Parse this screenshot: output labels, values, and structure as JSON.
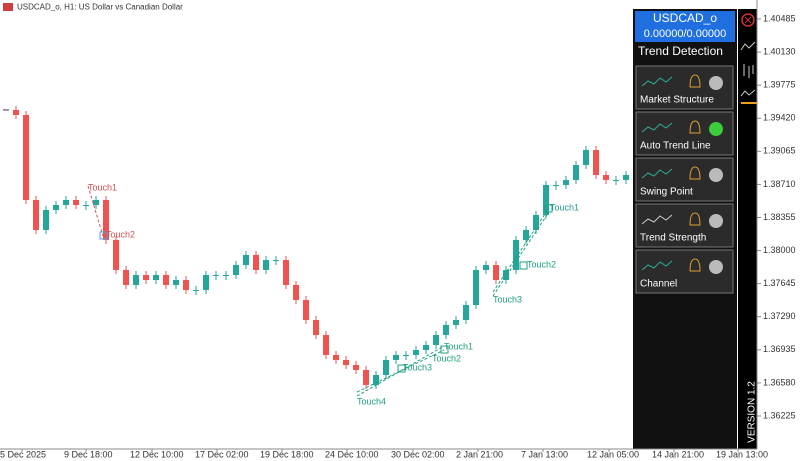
{
  "header": {
    "title": "USDCAD_o, H1: US Dollar vs Canadian Dollar"
  },
  "price_axis": {
    "ticks": [
      {
        "value": 1.40485,
        "label": "1.40485"
      },
      {
        "value": 1.4013,
        "label": "1.40130"
      },
      {
        "value": 1.39775,
        "label": "1.39775"
      },
      {
        "value": 1.3942,
        "label": "1.39420"
      },
      {
        "value": 1.39065,
        "label": "1.39065"
      },
      {
        "value": 1.3871,
        "label": "1.38710"
      },
      {
        "value": 1.38355,
        "label": "1.38355"
      },
      {
        "value": 1.38,
        "label": "1.38000"
      },
      {
        "value": 1.37645,
        "label": "1.37645"
      },
      {
        "value": 1.3729,
        "label": "1.37290"
      },
      {
        "value": 1.36935,
        "label": "1.36935"
      },
      {
        "value": 1.3658,
        "label": "1.36580"
      },
      {
        "value": 1.36225,
        "label": "1.36225"
      }
    ]
  },
  "time_axis": {
    "labels": [
      "5 Dec 2025",
      "9 Dec 18:00",
      "12 Dec 10:00",
      "17 Dec 02:00",
      "19 Dec 18:00",
      "24 Dec 10:00",
      "30 Dec 02:00",
      "2 Jan 21:00",
      "7 Jan 13:00",
      "12 Jan 05:00",
      "14 Jan 21:00",
      "19 Jan 13:00"
    ]
  },
  "price_series": {
    "values": [
      1.39509,
      1.39455,
      1.38543,
      1.38221,
      1.38436,
      1.38489,
      1.38543,
      1.38489,
      1.38489,
      1.38543,
      1.38114,
      1.37792,
      1.37631,
      1.37738,
      1.37684,
      1.37738,
      1.37631,
      1.37684,
      1.37577,
      1.37577,
      1.37738,
      1.37738,
      1.37738,
      1.37845,
      1.37953,
      1.37792,
      1.37899,
      1.37899,
      1.37631,
      1.3747,
      1.37255,
      1.37094,
      1.3688,
      1.36826,
      1.36772,
      1.36719,
      1.36558,
      1.36665,
      1.36826,
      1.3688,
      1.3688,
      1.36933,
      1.36987,
      1.37094,
      1.37202,
      1.37255,
      1.37416,
      1.37792,
      1.37845,
      1.37684,
      1.37792,
      1.38114,
      1.38221,
      1.38382,
      1.38704,
      1.38704,
      1.38757,
      1.38918,
      1.39079,
      1.38811,
      1.38757,
      1.38757,
      1.38811,
      1.38865
    ]
  },
  "annotations": {
    "red": [
      "Touch1",
      "Touch2"
    ],
    "green_left": [
      "Touch1",
      "Touch2",
      "Touch3",
      "Touch4"
    ],
    "green_right": [
      "Touch1",
      "Touch2",
      "Touch3"
    ]
  },
  "panel": {
    "symbol": "USDCAD_o",
    "quote": "0.00000/0.00000",
    "title": "Trend Detection",
    "items": [
      {
        "label": "Market Structure",
        "active": false
      },
      {
        "label": "Auto Trend Line",
        "active": true
      },
      {
        "label": "Swing Point",
        "active": false
      },
      {
        "label": "Trend Strength",
        "active": false
      },
      {
        "label": "Channel",
        "active": false
      }
    ]
  },
  "toolbar": {
    "version": "VERSION 1.2"
  }
}
